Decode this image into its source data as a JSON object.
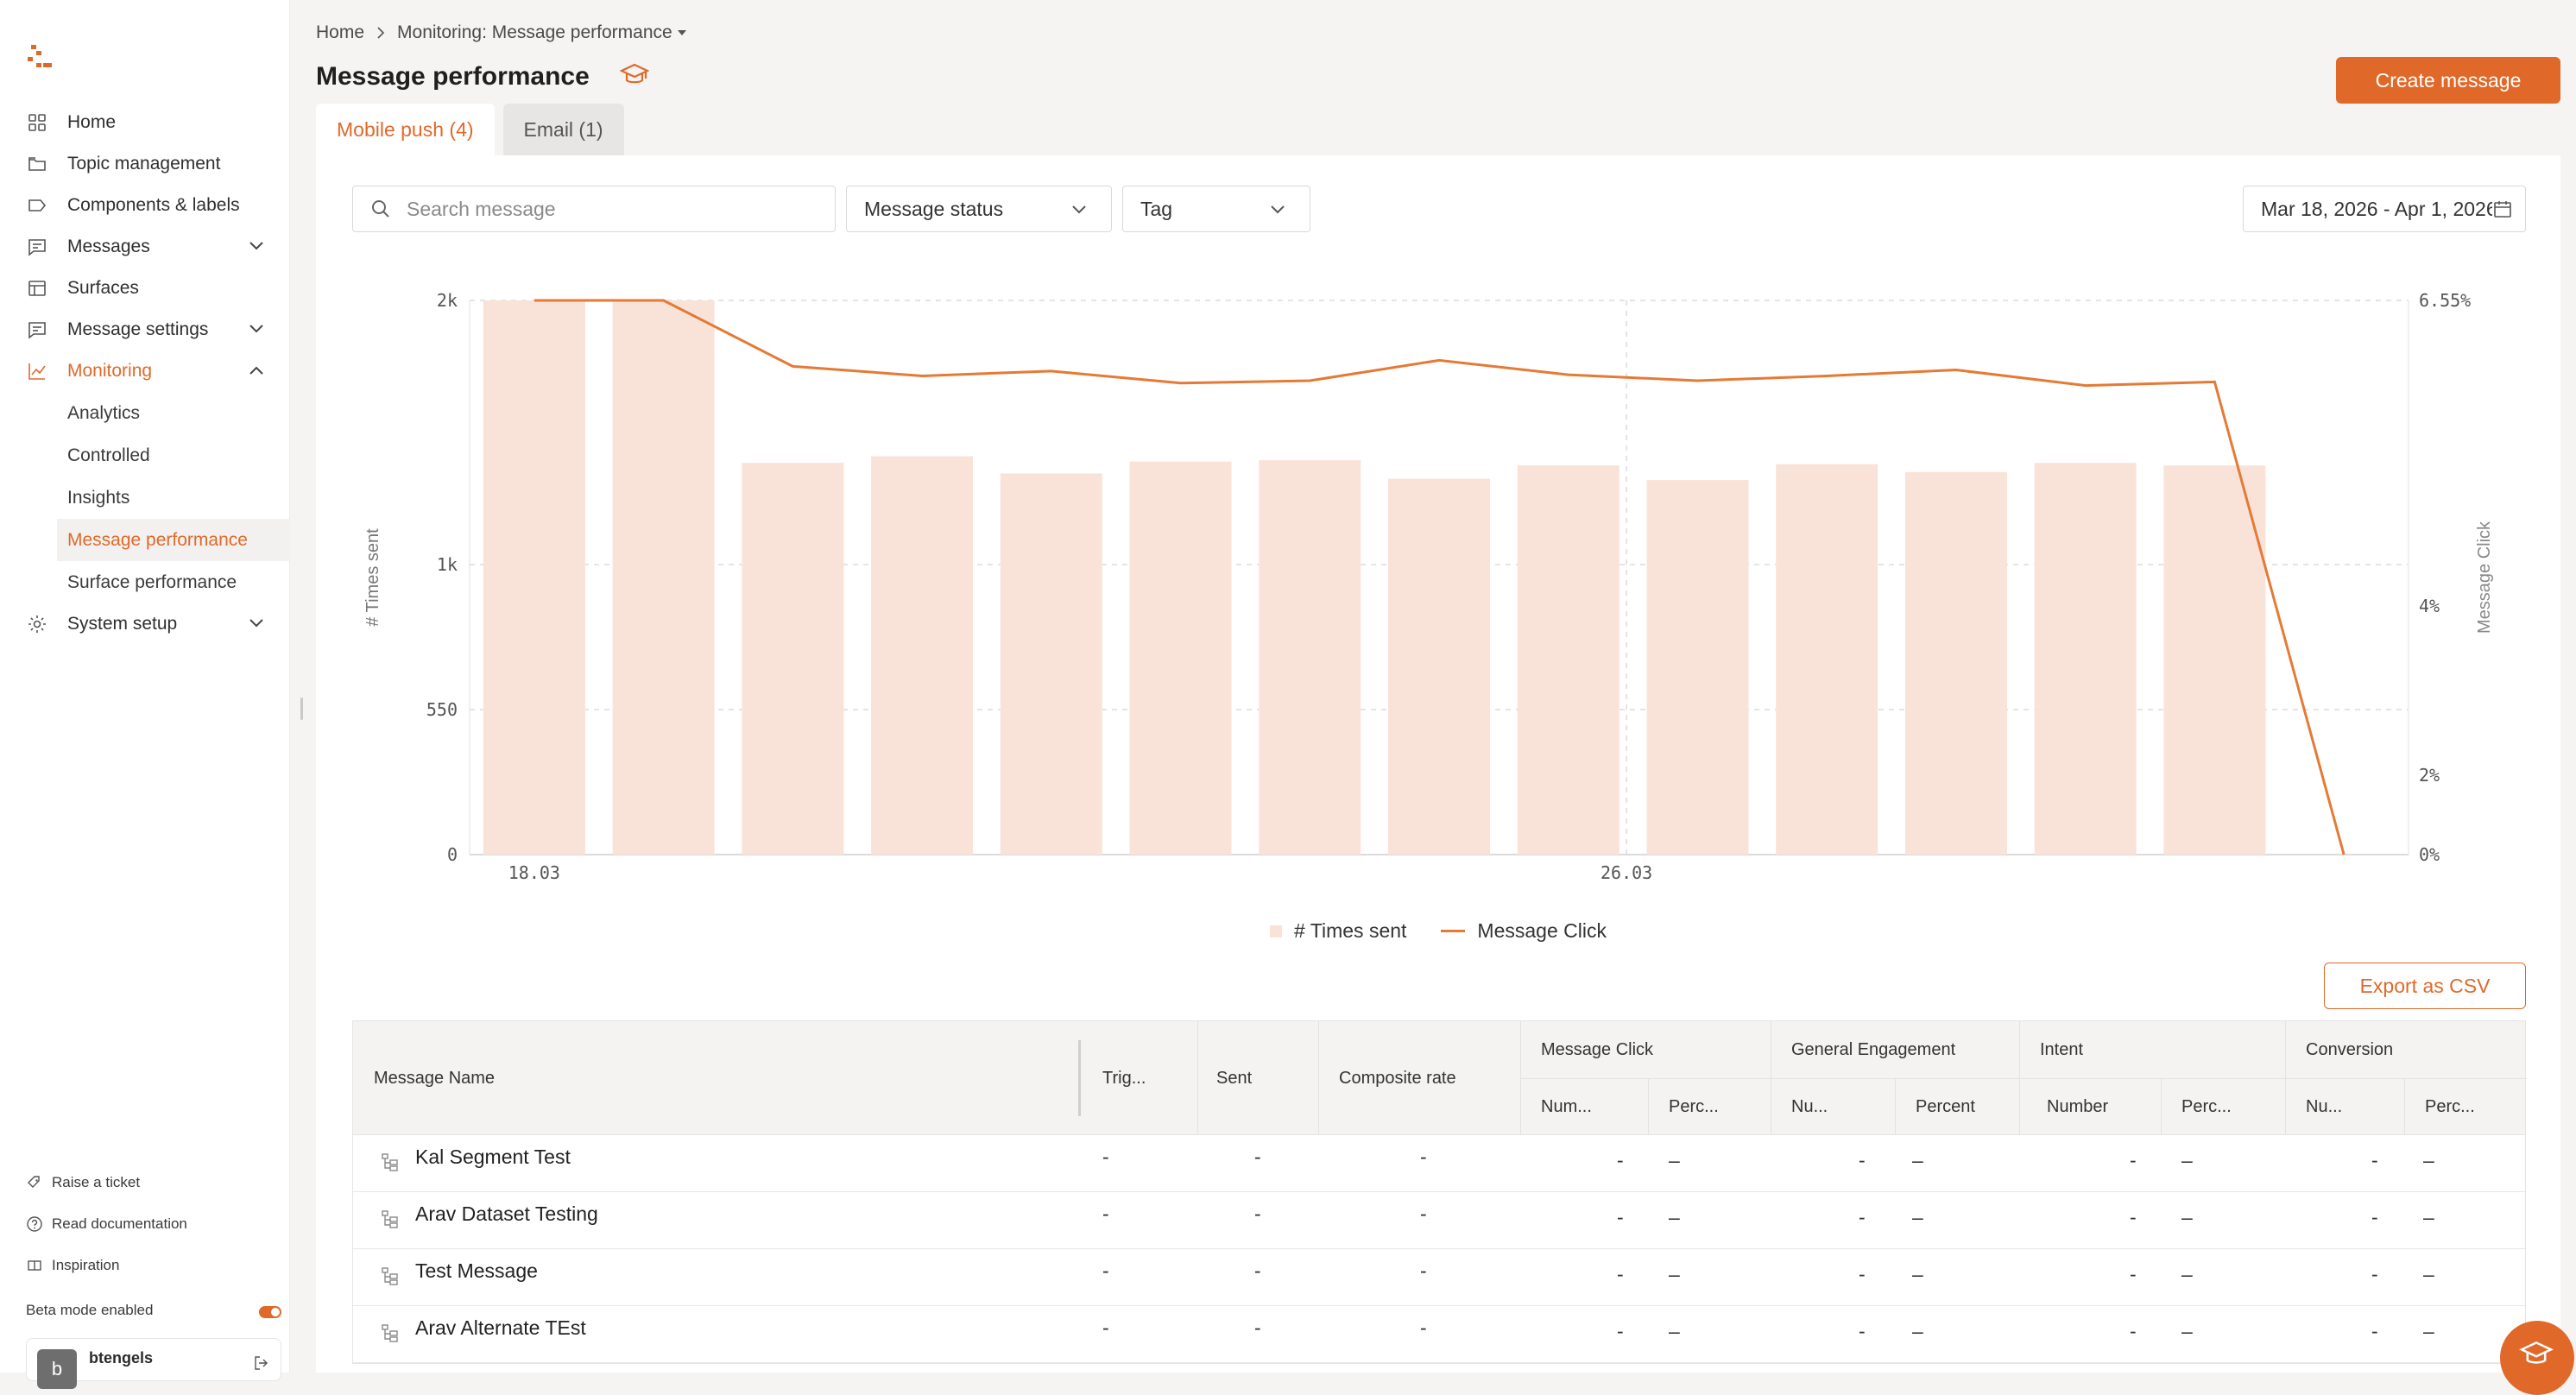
{
  "sidebar": {
    "items": [
      {
        "label": "Home",
        "icon": "grid-icon"
      },
      {
        "label": "Topic management",
        "icon": "folder-icon"
      },
      {
        "label": "Components & labels",
        "icon": "label-icon"
      },
      {
        "label": "Messages",
        "icon": "message-icon"
      },
      {
        "label": "Surfaces",
        "icon": "layout-icon"
      },
      {
        "label": "Message settings",
        "icon": "message-settings-icon"
      },
      {
        "label": "Monitoring",
        "icon": "chart-line-icon"
      }
    ],
    "monitoring_sub": [
      "Analytics",
      "Controlled",
      "Insights",
      "Message performance",
      "Surface performance"
    ],
    "system_setup": "System setup",
    "footer": {
      "raise_ticket": "Raise a ticket",
      "read_docs": "Read documentation",
      "inspiration": "Inspiration",
      "beta_label": "Beta mode enabled",
      "user_initial": "b",
      "user_name": "btengels"
    }
  },
  "breadcrumb": {
    "home": "Home",
    "current": "Monitoring: Message performance"
  },
  "page_title": "Message performance",
  "create_button": "Create message",
  "tabs": [
    {
      "label": "Mobile push (4)",
      "active": true
    },
    {
      "label": "Email (1)",
      "active": false
    }
  ],
  "filters": {
    "search_placeholder": "Search message",
    "status_label": "Message status",
    "tag_label": "Tag",
    "date_range": "Mar 18, 2026 - Apr 1, 2026"
  },
  "chart_data": {
    "type": "bar",
    "x_tick_labels": [
      "18.03",
      "26.03"
    ],
    "y_left": {
      "label": "# Times sent",
      "ticks": [
        "0",
        "550",
        "1k",
        "2k"
      ],
      "tick_values": [
        0,
        550,
        1000,
        2000
      ],
      "range": [
        0,
        2000
      ]
    },
    "y_right": {
      "label": "Message Click",
      "ticks": [
        "0%",
        "2%",
        "4%",
        "6.55%"
      ],
      "tick_values": [
        0,
        2,
        4,
        6.55
      ],
      "range": [
        0,
        6.55
      ]
    },
    "series": [
      {
        "name": "# Times sent",
        "kind": "bar",
        "color": "#f9e3d9",
        "values": [
          2000,
          2000,
          1385,
          1410,
          1345,
          1390,
          1395,
          1325,
          1375,
          1320,
          1380,
          1350,
          1385,
          1375,
          null
        ]
      },
      {
        "name": "Message Click",
        "kind": "line",
        "color": "#e57a35",
        "values": [
          6.55,
          6.55,
          6.0,
          5.92,
          5.96,
          5.86,
          5.88,
          6.05,
          5.93,
          5.88,
          5.92,
          5.97,
          5.84,
          5.87,
          0
        ]
      }
    ],
    "grid": true,
    "legend": "bottom-center"
  },
  "export_button": "Export as CSV",
  "table": {
    "headers": {
      "name": "Message Name",
      "trig": "Trig...",
      "sent": "Sent",
      "composite": "Composite rate",
      "groups": [
        "Message Click",
        "General Engagement",
        "Intent",
        "Conversion"
      ],
      "subs": [
        "Num...",
        "Perc...",
        "Nu...",
        "Percent",
        "Number",
        "Perc...",
        "Nu...",
        "Perc..."
      ]
    },
    "rows": [
      {
        "name": "Kal Segment Test",
        "values": [
          "-",
          "-",
          "-",
          "-",
          "–",
          "-",
          "–",
          "-",
          "–",
          "-",
          "–"
        ]
      },
      {
        "name": "Arav Dataset Testing",
        "values": [
          "-",
          "-",
          "-",
          "-",
          "–",
          "-",
          "–",
          "-",
          "–",
          "-",
          "–"
        ]
      },
      {
        "name": "Test Message",
        "values": [
          "-",
          "-",
          "-",
          "-",
          "–",
          "-",
          "–",
          "-",
          "–",
          "-",
          "–"
        ]
      },
      {
        "name": "Arav Alternate TEst",
        "values": [
          "-",
          "-",
          "-",
          "-",
          "–",
          "-",
          "–",
          "-",
          "–",
          "-",
          "–"
        ]
      }
    ]
  },
  "colors": {
    "accent": "#e0692a",
    "bar": "#f9e3d9",
    "line": "#e57a35"
  }
}
